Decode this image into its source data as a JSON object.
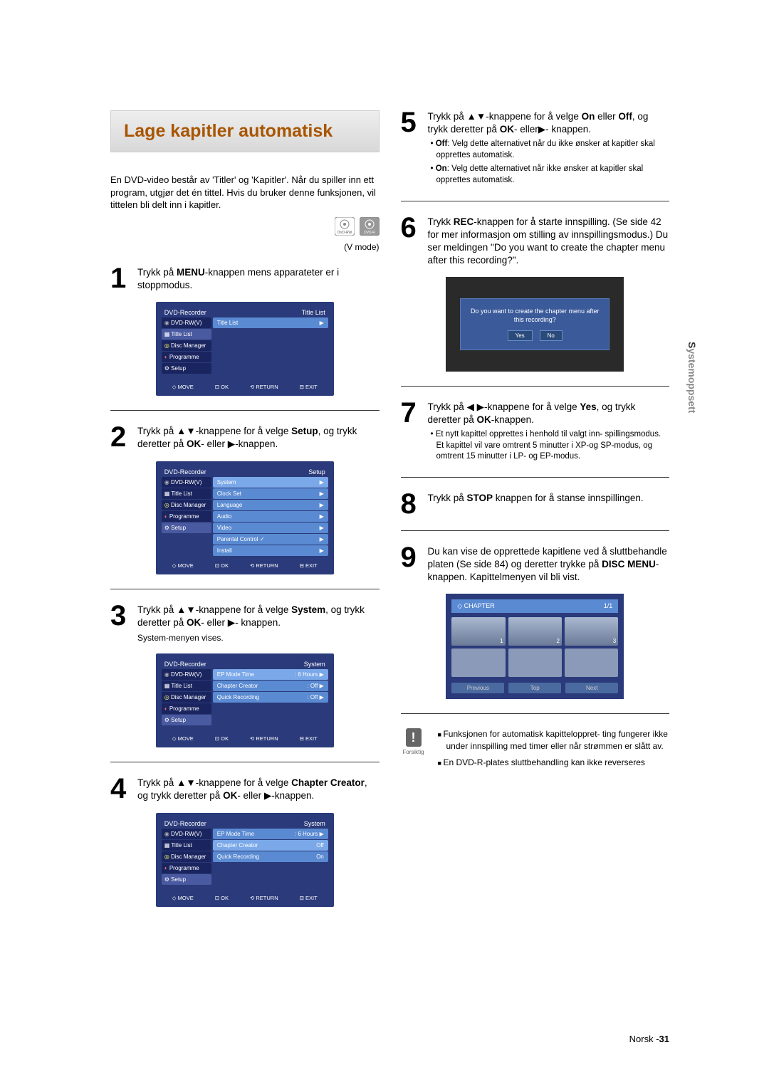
{
  "title": "Lage kapitler automatisk",
  "intro": "En DVD-video består av 'Titler' og 'Kapitler'. Når du spiller inn ett program, utgjør det én tittel. Hvis du bruker denne funksjonen, vil tittelen bli delt inn i kapitler.",
  "v_mode": "(V mode)",
  "steps": {
    "s1": {
      "n": "1",
      "text_pre": "Trykk på ",
      "bold1": "MENU",
      "text_post": "-knappen mens apparateter er i stoppmodus."
    },
    "s2": {
      "n": "2",
      "pre": "Trykk på ▲▼-knappene for å velge ",
      "bold": "Setup",
      "mid": ", og trykk deretter på ",
      "bold2": "OK",
      "post": "- eller ▶-knappen."
    },
    "s3": {
      "n": "3",
      "pre": "Trykk på ▲▼-knappene for å velge ",
      "bold": "System",
      "mid": ", og trykk deretter på ",
      "bold2": "OK",
      "post": "- eller ▶- knappen.",
      "sub": "System-menyen vises."
    },
    "s4": {
      "n": "4",
      "pre": "Trykk på ▲▼-knappene for å velge ",
      "bold": "Chapter Creator",
      "mid": ", og trykk deretter på ",
      "bold2": "OK",
      "post": "- eller  ▶-knappen."
    },
    "s5": {
      "n": "5",
      "pre": "Trykk på ▲▼-knappene for å velge ",
      "bold": "On",
      "mid": " eller ",
      "bold2": "Off",
      "mid2": ", og trykk deretter på ",
      "bold3": "OK",
      "post": "- eller▶- knappen.",
      "b1_pre": "Off",
      "b1": ": Velg dette alternativet når du ikke ønsker at kapitler skal opprettes automatisk.",
      "b2_pre": "On",
      "b2": ": Velg dette alternativet når ikke ønsker at kapitler skal opprettes automatisk."
    },
    "s6": {
      "n": "6",
      "pre": "Trykk ",
      "bold": "REC",
      "post": "-knappen for å starte innspilling. (Se side 42 for mer informasjon om stilling av innspillingsmodus.) Du ser meldingen \"Do you want to create the chapter menu after this recording?\"."
    },
    "s7": {
      "n": "7",
      "pre": "Trykk på ◀ ▶-knappene for å velge ",
      "bold": "Yes",
      "mid": ", og trykk deretter på ",
      "bold2": "OK",
      "post": "-knappen.",
      "b1": "Et nytt kapittel opprettes i henhold til valgt inn- spillingsmodus. Et kapittel vil vare omtrent 5 minutter i XP-og SP-modus, og omtrent 15 minutter i LP- og EP-modus."
    },
    "s8": {
      "n": "8",
      "pre": "Trykk på ",
      "bold": "STOP",
      "post": " knappen for å stanse innspillingen."
    },
    "s9": {
      "n": "9",
      "pre": "Du kan vise de opprettede kapitlene ved å sluttbehandle platen (Se side 84) og deretter trykke på ",
      "bold": "DISC MENU",
      "post": "-knappen. Kapittelmenyen vil bli vist."
    }
  },
  "screenshots": {
    "sc1": {
      "header_left": "DVD-Recorder",
      "header_right": "Title List",
      "side": [
        "DVD-RW(V)",
        "Title List",
        "Disc Manager",
        "Programme",
        "Setup"
      ],
      "main": [
        {
          "label": "Title List",
          "val": "",
          "arrow": "▶"
        }
      ],
      "footer": [
        "◇ MOVE",
        "⊡ OK",
        "⟲ RETURN",
        "⊟ EXIT"
      ]
    },
    "sc2": {
      "header_left": "DVD-Recorder",
      "header_right": "Setup",
      "side": [
        "DVD-RW(V)",
        "Title List",
        "Disc Manager",
        "Programme",
        "Setup"
      ],
      "main": [
        {
          "label": "System",
          "val": "",
          "arrow": "▶",
          "hl": true
        },
        {
          "label": "Clock Set",
          "val": "",
          "arrow": "▶"
        },
        {
          "label": "Language",
          "val": "",
          "arrow": "▶"
        },
        {
          "label": "Audio",
          "val": "",
          "arrow": "▶"
        },
        {
          "label": "Video",
          "val": "",
          "arrow": "▶"
        },
        {
          "label": "Parental Control ✓",
          "val": "",
          "arrow": "▶"
        },
        {
          "label": "Install",
          "val": "",
          "arrow": "▶"
        }
      ],
      "footer": [
        "◇ MOVE",
        "⊡ OK",
        "⟲ RETURN",
        "⊟ EXIT"
      ]
    },
    "sc3": {
      "header_left": "DVD-Recorder",
      "header_right": "System",
      "side": [
        "DVD-RW(V)",
        "Title List",
        "Disc Manager",
        "Programme",
        "Setup"
      ],
      "main": [
        {
          "label": "EP Mode Time",
          "val": ": 6 Hours",
          "arrow": "▶",
          "hl": true
        },
        {
          "label": "Chapter Creator",
          "val": ": Off",
          "arrow": "▶"
        },
        {
          "label": "Quick Recording",
          "val": ": Off",
          "arrow": "▶"
        }
      ],
      "footer": [
        "◇ MOVE",
        "⊡ OK",
        "⟲ RETURN",
        "⊟ EXIT"
      ]
    },
    "sc4": {
      "header_left": "DVD-Recorder",
      "header_right": "System",
      "side": [
        "DVD-RW(V)",
        "Title List",
        "Disc Manager",
        "Programme",
        "Setup"
      ],
      "main": [
        {
          "label": "EP Mode Time",
          "val": ": 6 Hours",
          "arrow": "▶"
        },
        {
          "label": "Chapter Creator",
          "val": "Off",
          "arrow": "",
          "hl": true
        },
        {
          "label": "Quick Recording",
          "val": "On",
          "arrow": ""
        }
      ],
      "footer": [
        "◇ MOVE",
        "⊡ OK",
        "⟲ RETURN",
        "⊟ EXIT"
      ]
    },
    "dialog": {
      "text": "Do you want to create the chapter menu after this recording?",
      "yes": "Yes",
      "no": "No"
    },
    "chapter": {
      "title": "◇ CHAPTER",
      "count": "1/1",
      "thumbs": [
        "1",
        "2",
        "3"
      ],
      "prev": "Previous",
      "top": "Top",
      "next": "Next"
    }
  },
  "caution": {
    "label": "Forsiktig",
    "items": [
      "Funksjonen for automatisk kapitteloppret- ting fungerer ikke under innspilling med timer eller når strømmen er slått av.",
      "En DVD-R-plates sluttbehandling kan ikke reverseres"
    ]
  },
  "side_label": {
    "bold": "S",
    "rest": "ystemoppsett"
  },
  "footer": {
    "lang": "Norsk -",
    "page": "31"
  }
}
